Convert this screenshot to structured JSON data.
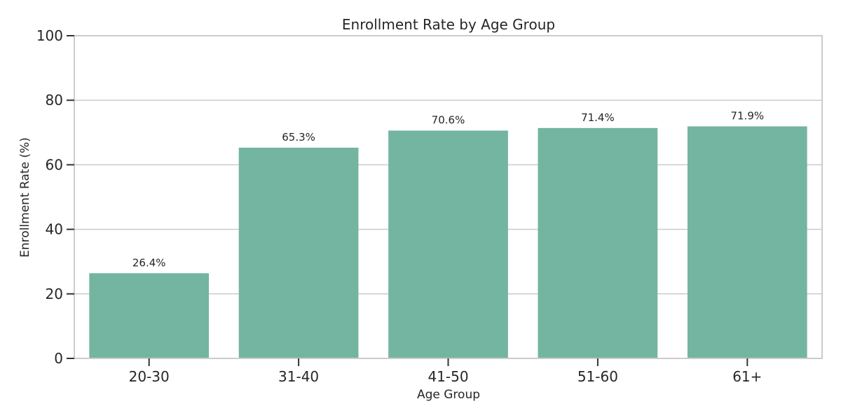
{
  "chart_data": {
    "type": "bar",
    "title": "Enrollment Rate by Age Group",
    "xlabel": "Age Group",
    "ylabel": "Enrollment Rate (%)",
    "categories": [
      "20-30",
      "31-40",
      "41-50",
      "51-60",
      "61+"
    ],
    "values": [
      26.4,
      65.3,
      70.6,
      71.4,
      71.9
    ],
    "data_labels": [
      "26.4%",
      "65.3%",
      "70.6%",
      "71.4%",
      "71.9%"
    ],
    "ylim": [
      0,
      100
    ],
    "yticks": [
      0,
      20,
      40,
      60,
      80,
      100
    ],
    "grid": "horizontal",
    "legend": "none",
    "colors": {
      "bar": "#73b5a0",
      "grid": "#cccccc",
      "spine": "#cccccc",
      "tick": "#333333",
      "text": "#262626"
    }
  }
}
